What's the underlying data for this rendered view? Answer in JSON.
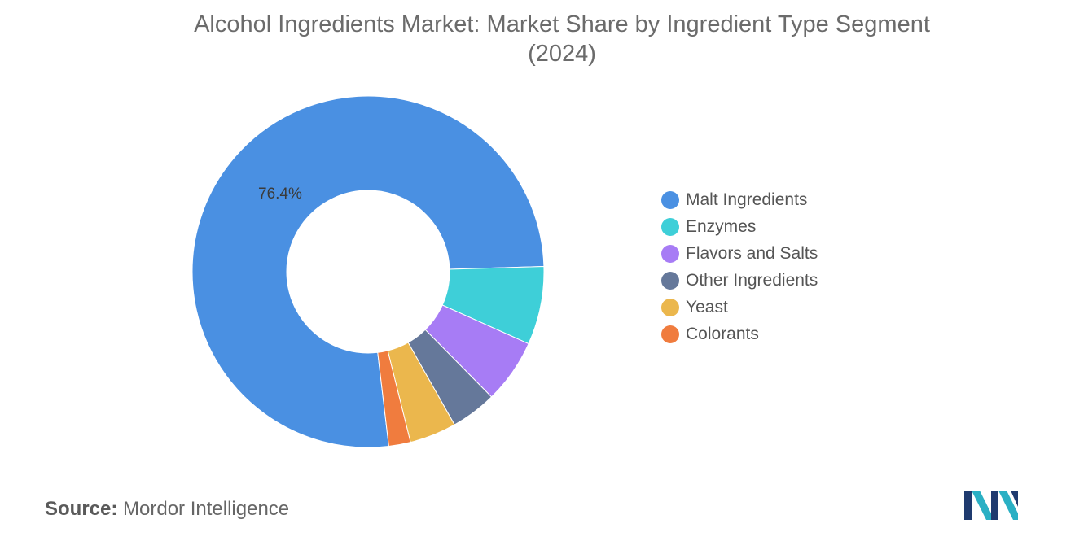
{
  "chart_data": {
    "type": "pie",
    "variant": "donut",
    "title": "Alcohol Ingredients Market: Market Share by Ingredient Type Segment",
    "subtitle": "(2024)",
    "categories": [
      "Malt Ingredients",
      "Enzymes",
      "Flavors and Salts",
      "Other Ingredients",
      "Yeast",
      "Colorants"
    ],
    "values": [
      76.4,
      7.2,
      5.9,
      4.2,
      4.3,
      2.0
    ],
    "colors": [
      "#4a90e2",
      "#3ecfd8",
      "#a77cf5",
      "#65789a",
      "#ebb74d",
      "#f07c3e"
    ],
    "data_labels": [
      {
        "index": 0,
        "text": "76.4%"
      }
    ],
    "legend_placement": "right"
  },
  "source": {
    "label": "Source:",
    "value": "Mordor Intelligence"
  },
  "logo": {
    "icon": "mordor-intelligence-logo",
    "colors": [
      "#1f3b6f",
      "#2ab0c4"
    ]
  }
}
